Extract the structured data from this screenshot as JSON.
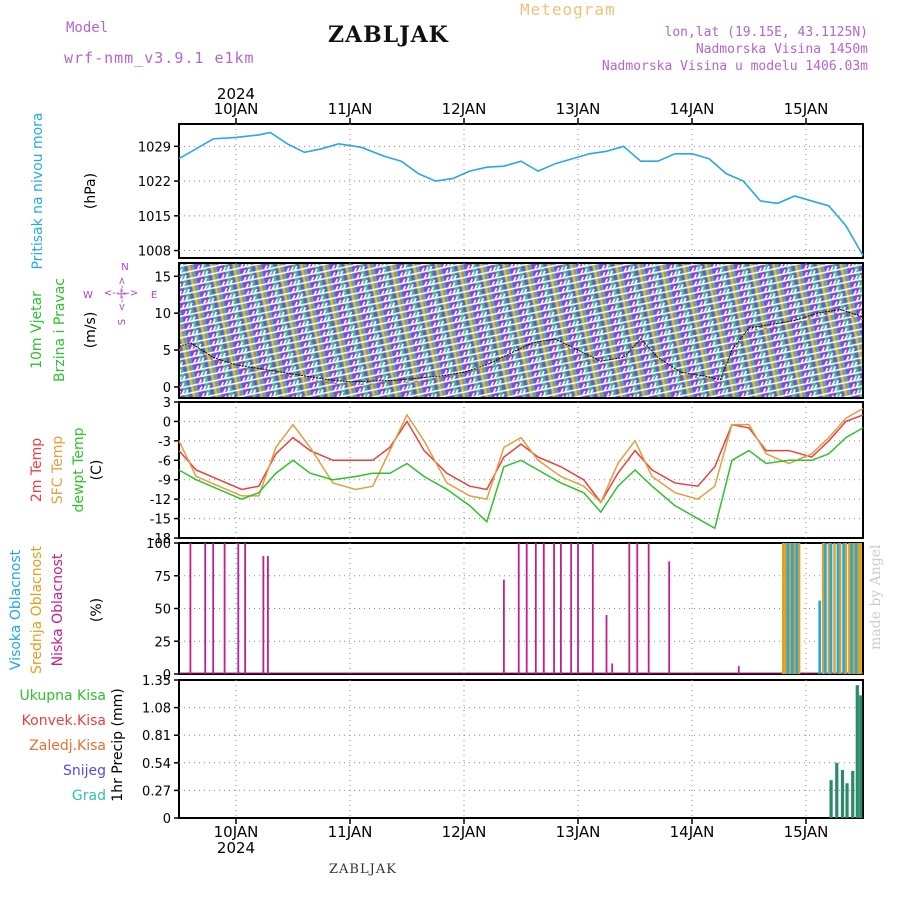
{
  "header": {
    "model_label": "Model",
    "model_run": "wrf-nmm_v3.9.1 e1km",
    "site": "ZABLJAK",
    "meteogram_label": "Meteogram",
    "lonlat": "lon,lat (19.15E, 43.1125N)",
    "elevation": "Nadmorska Visina 1450m",
    "model_elevation": "Nadmorska Visina u modelu 1406.03m"
  },
  "footer": {
    "site": "ZABLJAK",
    "credit": "made by Angel"
  },
  "time_axis": {
    "year_label": "2024",
    "day_labels": [
      "10JAN",
      "11JAN",
      "12JAN",
      "13JAN",
      "14JAN",
      "15JAN"
    ]
  },
  "colors": {
    "pressure": "#29a8e0",
    "temp2m": "#e84040",
    "sfc_temp": "#e0a040",
    "dewpoint": "#30c030",
    "low_cloud": "#c0208a",
    "mid_cloud": "#e0a020",
    "high_cloud": "#20a8e0",
    "total_precip": "#2a8a6a"
  },
  "chart_data": [
    {
      "type": "line",
      "panel": "pressure",
      "ylabel": "Pritisak na nivou mora",
      "yunit": "(hPa)",
      "yticks": [
        1008,
        1015,
        1022,
        1029
      ],
      "ylim": [
        1006.5,
        1033.5
      ],
      "x_day": [
        9.5,
        9.65,
        9.8,
        10.0,
        10.2,
        10.3,
        10.45,
        10.6,
        10.75,
        10.9,
        11.1,
        11.3,
        11.45,
        11.6,
        11.75,
        11.9,
        12.05,
        12.2,
        12.35,
        12.5,
        12.65,
        12.8,
        12.95,
        13.1,
        13.25,
        13.4,
        13.55,
        13.7,
        13.85,
        14.0,
        14.15,
        14.3,
        14.45,
        14.6,
        14.75,
        14.9,
        15.05,
        15.2,
        15.35,
        15.5
      ],
      "series": [
        {
          "values": [
            1026.5,
            1028.5,
            1030.5,
            1030.8,
            1031.3,
            1031.8,
            1029.5,
            1027.8,
            1028.5,
            1029.5,
            1028.8,
            1027.0,
            1026.0,
            1023.5,
            1022.0,
            1022.5,
            1024.0,
            1024.8,
            1025.0,
            1026.0,
            1024.0,
            1025.5,
            1026.5,
            1027.5,
            1028.0,
            1029.0,
            1026.0,
            1026.0,
            1027.5,
            1027.5,
            1026.5,
            1023.5,
            1022.0,
            1018.0,
            1017.5,
            1019.0,
            1018.0,
            1017.0,
            1013.0,
            1007.0
          ]
        }
      ]
    },
    {
      "type": "barbs-line",
      "panel": "wind",
      "ylabel": "10m Vjetar",
      "ylabel2": "Brzina i Pravac",
      "yunit": "(m/s)",
      "compass": {
        "north": "N",
        "south": "S",
        "east": "E",
        "west": "W",
        "arrow_h": "<--|-->",
        "arrow_v": "<--|-->"
      },
      "yticks": [
        0,
        5,
        10,
        15
      ],
      "ylim": [
        -1.5,
        16.8
      ],
      "x_day": [
        9.5,
        9.6,
        9.8,
        10.0,
        10.2,
        10.4,
        10.6,
        10.8,
        11.0,
        11.2,
        11.4,
        11.6,
        11.8,
        12.0,
        12.2,
        12.4,
        12.6,
        12.8,
        13.0,
        13.2,
        13.4,
        13.55,
        13.7,
        13.9,
        14.1,
        14.25,
        14.35,
        14.5,
        14.7,
        14.9,
        15.1,
        15.3,
        15.5
      ],
      "series": [
        {
          "name": "speed",
          "values": [
            5.5,
            6.0,
            4.0,
            3.0,
            2.5,
            2.0,
            1.5,
            1.0,
            0.7,
            0.8,
            0.9,
            1.2,
            1.5,
            2.0,
            3.0,
            4.5,
            6.0,
            6.5,
            5.0,
            3.5,
            4.0,
            6.5,
            4.0,
            2.0,
            1.5,
            1.0,
            5.0,
            8.0,
            8.5,
            9.0,
            10.0,
            10.5,
            9.5
          ]
        }
      ]
    },
    {
      "type": "line",
      "panel": "temperature",
      "ylabel": "2m Temp",
      "ylabel2": "SFC Temp",
      "ylabel3": "dewpt Temp",
      "yunit": "(C)",
      "yticks": [
        3,
        0,
        -3,
        -6,
        -9,
        -12,
        -15,
        -18
      ],
      "ylim": [
        -18,
        3
      ],
      "x_day": [
        9.5,
        9.65,
        9.85,
        10.05,
        10.2,
        10.35,
        10.5,
        10.65,
        10.85,
        11.05,
        11.2,
        11.35,
        11.5,
        11.65,
        11.85,
        12.05,
        12.2,
        12.35,
        12.5,
        12.65,
        12.85,
        13.05,
        13.2,
        13.35,
        13.5,
        13.65,
        13.85,
        14.05,
        14.2,
        14.35,
        14.5,
        14.65,
        14.85,
        15.05,
        15.2,
        15.35,
        15.5
      ],
      "series": [
        {
          "name": "2m Temp",
          "values": [
            -4.5,
            -7.5,
            -9.0,
            -10.5,
            -10.0,
            -5.0,
            -2.5,
            -4.5,
            -6.0,
            -6.0,
            -6.0,
            -4.0,
            0.0,
            -4.5,
            -8.0,
            -10.0,
            -10.5,
            -5.5,
            -3.5,
            -5.5,
            -7.0,
            -9.0,
            -12.5,
            -8.0,
            -4.5,
            -7.5,
            -9.5,
            -10.0,
            -7.0,
            -0.5,
            -1.0,
            -4.5,
            -4.5,
            -5.5,
            -3.0,
            0.0,
            1.0
          ]
        },
        {
          "name": "SFC Temp",
          "values": [
            -3.0,
            -8.5,
            -10.0,
            -11.5,
            -11.5,
            -4.0,
            -0.5,
            -4.0,
            -9.5,
            -10.5,
            -10.0,
            -4.5,
            1.0,
            -3.0,
            -9.5,
            -11.5,
            -12.0,
            -4.0,
            -2.5,
            -6.0,
            -8.5,
            -10.0,
            -12.5,
            -6.5,
            -3.0,
            -8.5,
            -11.0,
            -12.0,
            -10.0,
            -0.5,
            -0.5,
            -5.0,
            -6.5,
            -5.0,
            -2.5,
            0.5,
            2.0
          ]
        },
        {
          "name": "dewpt Temp",
          "values": [
            -7.5,
            -9.0,
            -10.5,
            -12.0,
            -11.0,
            -8.0,
            -6.0,
            -8.0,
            -9.0,
            -8.5,
            -8.0,
            -8.0,
            -6.5,
            -8.5,
            -10.5,
            -13.0,
            -15.5,
            -7.0,
            -6.0,
            -7.5,
            -9.5,
            -11.0,
            -14.0,
            -10.0,
            -7.5,
            -10.0,
            -13.0,
            -15.0,
            -16.5,
            -6.0,
            -4.5,
            -6.5,
            -6.0,
            -6.0,
            -5.0,
            -2.5,
            -1.0
          ]
        }
      ]
    },
    {
      "type": "bar",
      "panel": "clouds",
      "ylabel": "Visoka Oblacnost",
      "ylabel2": "Srednja Oblacnost",
      "ylabel3": "Niska Oblacnost",
      "yunit": "(%)",
      "yticks": [
        0,
        25,
        50,
        75,
        100
      ],
      "ylim": [
        0,
        100
      ],
      "series": [
        {
          "name": "Niska Oblacnost",
          "x_day": [
            9.6,
            9.73,
            9.8,
            9.9,
            10.02,
            10.08,
            10.24,
            10.28,
            12.35,
            12.48,
            12.55,
            12.63,
            12.7,
            12.79,
            12.85,
            12.94,
            13.0,
            13.13,
            13.25,
            13.3,
            13.45,
            13.52,
            13.62,
            13.8,
            14.41
          ],
          "values": [
            100,
            100,
            100,
            100,
            100,
            100,
            90,
            90,
            72,
            100,
            100,
            100,
            100,
            100,
            100,
            100,
            100,
            100,
            45,
            8,
            100,
            100,
            100,
            86,
            6
          ]
        },
        {
          "name": "Srednja Oblacnost",
          "x_day": [
            14.8,
            14.82,
            14.86,
            14.9,
            14.94,
            15.15,
            15.2,
            15.25,
            15.3,
            15.35,
            15.38,
            15.42,
            15.46,
            15.48
          ],
          "values": [
            100,
            100,
            100,
            100,
            100,
            100,
            100,
            100,
            100,
            100,
            100,
            100,
            100,
            100
          ]
        },
        {
          "name": "Visoka Oblacnost",
          "x_day": [
            14.84,
            14.88,
            14.92,
            15.12,
            15.17,
            15.22,
            15.28,
            15.33,
            15.4,
            15.44
          ],
          "values": [
            100,
            100,
            100,
            56,
            100,
            100,
            100,
            100,
            100,
            100
          ]
        }
      ]
    },
    {
      "type": "bar",
      "panel": "precipitation",
      "ylabel": "1hr Precip",
      "yunit": "(mm)",
      "legend": [
        "Ukupna Kisa",
        "Konvek.Kisa",
        "Zaledj.Kisa",
        "Snijeg",
        "Grad"
      ],
      "yticks": [
        0,
        0.27,
        0.54,
        0.81,
        1.08,
        1.35
      ],
      "ylim": [
        0,
        1.35
      ],
      "series": [
        {
          "name": "Ukupna Kisa",
          "x_day": [
            15.22,
            15.27,
            15.32,
            15.36,
            15.41,
            15.45,
            15.48
          ],
          "values": [
            0.37,
            0.54,
            0.47,
            0.34,
            0.46,
            1.3,
            1.2
          ]
        }
      ]
    }
  ]
}
